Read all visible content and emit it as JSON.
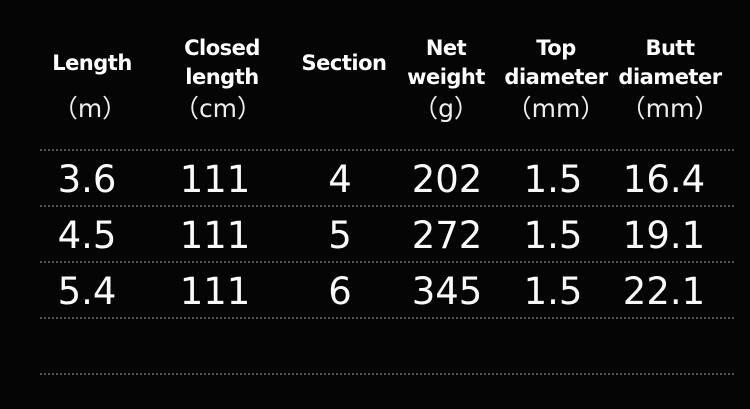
{
  "headers": [
    {
      "lines": [
        "Length"
      ],
      "unit": "（m）"
    },
    {
      "lines": [
        "Closed",
        "length"
      ],
      "unit": "（cm）"
    },
    {
      "lines": [
        "Section"
      ],
      "unit": ""
    },
    {
      "lines": [
        "Net",
        "weight"
      ],
      "unit": "（g）"
    },
    {
      "lines": [
        "Top",
        "diameter"
      ],
      "unit": "（mm）"
    },
    {
      "lines": [
        "Butt",
        "diameter"
      ],
      "unit": "（mm）"
    }
  ],
  "rows": [
    [
      "3.6",
      "111",
      "4",
      "202",
      "1.5",
      "16.4"
    ],
    [
      "4.5",
      "111",
      "5",
      "272",
      "1.5",
      "19.1"
    ],
    [
      "5.4",
      "111",
      "6",
      "345",
      "1.5",
      "22.1"
    ]
  ]
}
